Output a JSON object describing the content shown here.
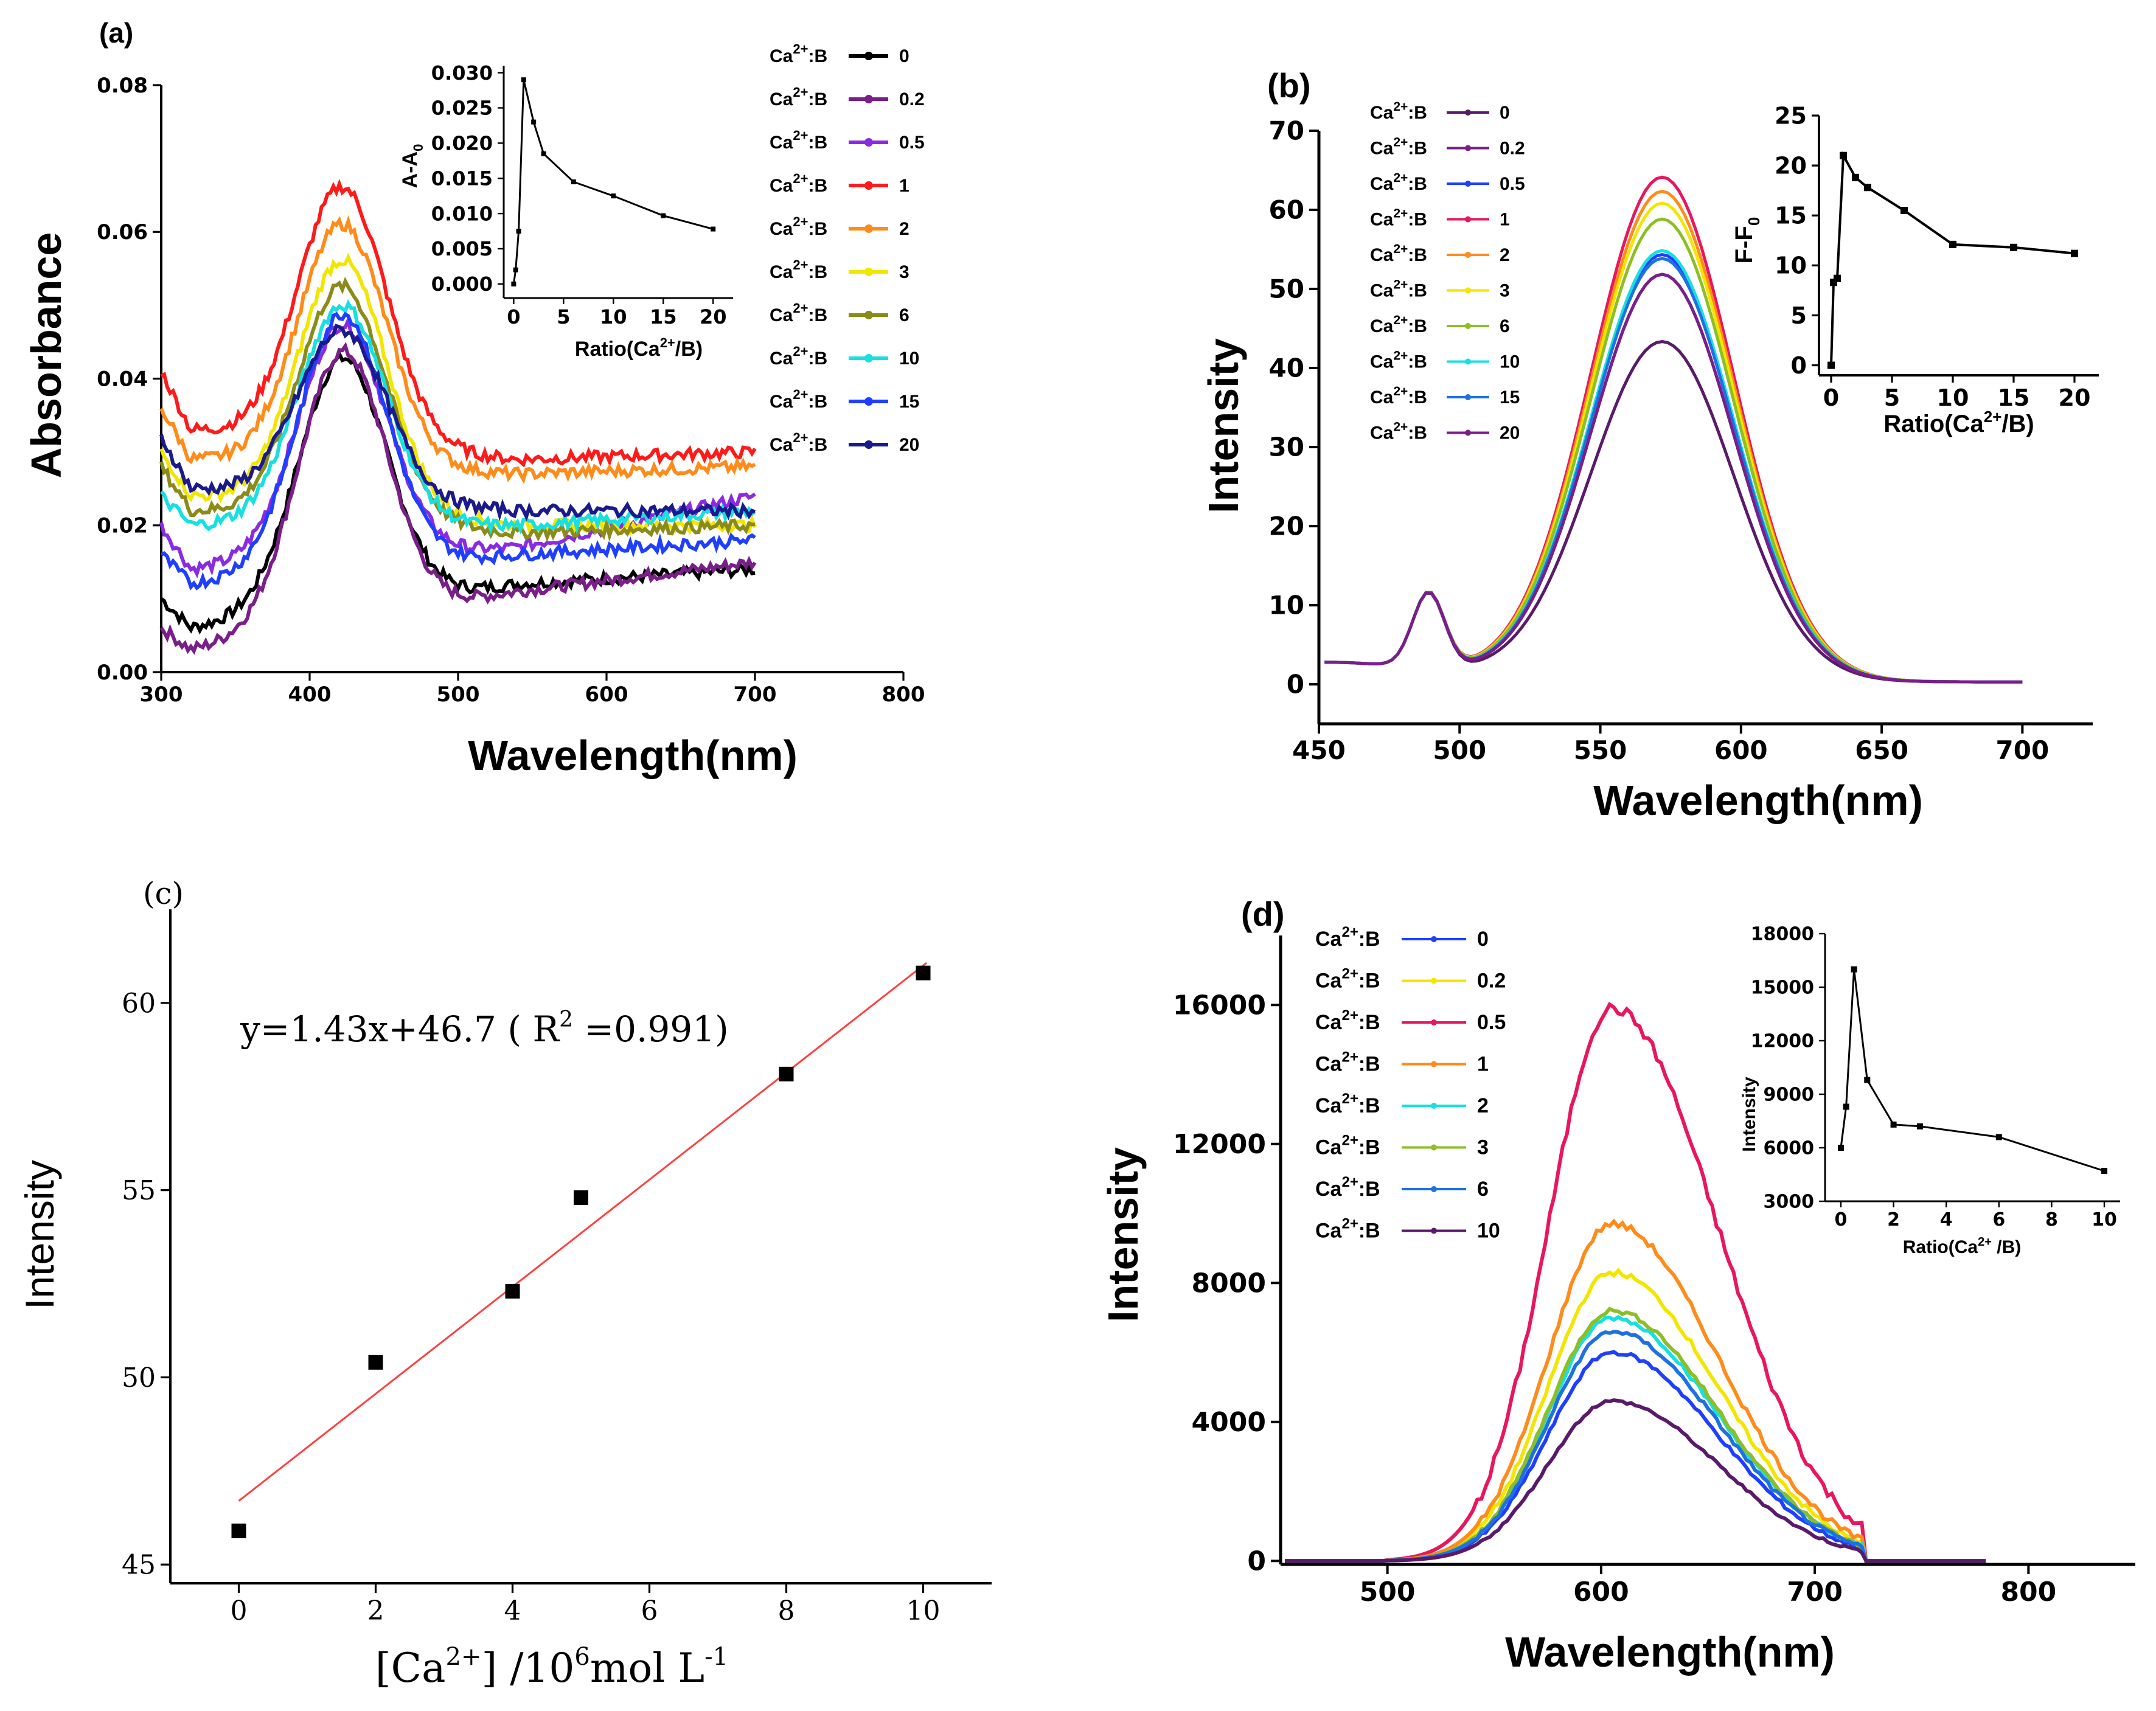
{
  "colors": {
    "black": "#000000",
    "purple": "#7a1e8a",
    "violet": "#8a2be2",
    "red": "#ff1a1a",
    "orange": "#ff8c1a",
    "yellow": "#f2e600",
    "olive": "#8b8b1a",
    "cyan": "#18e0e0",
    "blue": "#1f3fff",
    "navy": "#1a1a8c",
    "pink": "#e8175d",
    "midblue": "#2070e0",
    "green": "#8cbf26",
    "dkpurple": "#5a1a6a",
    "fit": "#ff4040"
  },
  "chart_data": [
    {
      "panel": "a",
      "panel_label": "(a)",
      "type": "line",
      "xlabel": "Wavelength(nm)",
      "ylabel": "Absorbance",
      "xlim": [
        300,
        800
      ],
      "ylim": [
        0,
        0.08
      ],
      "xticks": [
        "300",
        "400",
        "500",
        "600",
        "700",
        "800"
      ],
      "yticks": [
        "0.00",
        "0.02",
        "0.04",
        "0.06",
        "0.08"
      ],
      "legend": {
        "placement": "right",
        "prefix": "Ca",
        "sup": "2+",
        "suffix": ":B"
      },
      "series": [
        {
          "name": "0",
          "color": "black",
          "values": {
            "start": 0.01,
            "valley": 0.006,
            "peak": 0.04,
            "plateau": 0.012,
            "end": 0.014
          }
        },
        {
          "name": "0.2",
          "color": "purple",
          "values": {
            "start": 0.006,
            "valley": 0.003,
            "peak": 0.04,
            "plateau": 0.011,
            "end": 0.015
          }
        },
        {
          "name": "0.5",
          "color": "violet",
          "values": {
            "start": 0.02,
            "valley": 0.014,
            "peak": 0.046,
            "plateau": 0.017,
            "end": 0.024
          }
        },
        {
          "name": "1",
          "color": "red",
          "values": {
            "start": 0.041,
            "valley": 0.033,
            "peak": 0.068,
            "plateau": 0.029,
            "end": 0.03
          }
        },
        {
          "name": "2",
          "color": "orange",
          "values": {
            "start": 0.036,
            "valley": 0.029,
            "peak": 0.062,
            "plateau": 0.027,
            "end": 0.028
          }
        },
        {
          "name": "3",
          "color": "yellow",
          "values": {
            "start": 0.03,
            "valley": 0.024,
            "peak": 0.058,
            "plateau": 0.02,
            "end": 0.02
          }
        },
        {
          "name": "6",
          "color": "olive",
          "values": {
            "start": 0.028,
            "valley": 0.022,
            "peak": 0.054,
            "plateau": 0.019,
            "end": 0.02
          }
        },
        {
          "name": "10",
          "color": "cyan",
          "values": {
            "start": 0.024,
            "valley": 0.02,
            "peak": 0.05,
            "plateau": 0.02,
            "end": 0.022
          }
        },
        {
          "name": "15",
          "color": "blue",
          "values": {
            "start": 0.016,
            "valley": 0.012,
            "peak": 0.047,
            "plateau": 0.016,
            "end": 0.018
          }
        },
        {
          "name": "20",
          "color": "navy",
          "values": {
            "start": 0.032,
            "valley": 0.025,
            "peak": 0.048,
            "plateau": 0.022,
            "end": 0.022
          }
        }
      ],
      "inset": {
        "ylabel": "A-A",
        "ylabel_sub": "0",
        "xlabel": "Ratio(Ca",
        "xlabel_sup": "2+",
        "xlabel_tail": "/B)",
        "xlim": [
          -1,
          22
        ],
        "ylim": [
          -0.002,
          0.031
        ],
        "xticks": [
          "0",
          "5",
          "10",
          "15",
          "20"
        ],
        "yticks": [
          "0.000",
          "0.005",
          "0.010",
          "0.015",
          "0.020",
          "0.025",
          "0.030"
        ],
        "x": [
          0,
          0.2,
          0.5,
          1,
          2,
          3,
          6,
          10,
          15,
          20
        ],
        "y": [
          0.0,
          0.002,
          0.0075,
          0.029,
          0.023,
          0.0185,
          0.0145,
          0.0125,
          0.0097,
          0.0078
        ]
      }
    },
    {
      "panel": "b",
      "panel_label": "(b)",
      "type": "line",
      "xlabel": "Wavelength(nm)",
      "ylabel": "Intensity",
      "xlim": [
        450,
        725
      ],
      "ylim": [
        -5,
        70
      ],
      "xticks": [
        "450",
        "500",
        "550",
        "600",
        "650",
        "700"
      ],
      "yticks": [
        "0",
        "10",
        "20",
        "30",
        "40",
        "50",
        "60",
        "70"
      ],
      "legend": {
        "placement": "top-left",
        "prefix": "Ca",
        "sup": "2+",
        "suffix": ":B"
      },
      "series": [
        {
          "name": "0",
          "color": "dkpurple",
          "peak": 43
        },
        {
          "name": "0.2",
          "color": "purple",
          "peak": 51.5
        },
        {
          "name": "0.5",
          "color": "blue",
          "peak": 54
        },
        {
          "name": "1",
          "color": "pink",
          "peak": 63.8
        },
        {
          "name": "2",
          "color": "orange",
          "peak": 62
        },
        {
          "name": "3",
          "color": "yellow",
          "peak": 60.5
        },
        {
          "name": "6",
          "color": "green",
          "peak": 58.5
        },
        {
          "name": "10",
          "color": "cyan",
          "peak": 54.5
        },
        {
          "name": "15",
          "color": "midblue",
          "peak": 53.5
        },
        {
          "name": "20",
          "color": "purple",
          "peak": 51.5
        }
      ],
      "inset": {
        "ylabel": "F-F",
        "ylabel_sub": "0",
        "xlabel": "Ratio(Ca",
        "xlabel_sup": "2+",
        "xlabel_tail": "/B)",
        "xlim": [
          -1,
          22
        ],
        "ylim": [
          -1,
          25
        ],
        "xticks": [
          "0",
          "5",
          "10",
          "15",
          "20"
        ],
        "yticks": [
          "0",
          "5",
          "10",
          "15",
          "20",
          "25"
        ],
        "x": [
          0,
          0.2,
          0.5,
          1,
          2,
          3,
          6,
          10,
          15,
          20
        ],
        "y": [
          0,
          8.3,
          8.7,
          21,
          18.8,
          17.8,
          15.5,
          12.1,
          11.8,
          11.2
        ]
      }
    },
    {
      "panel": "c",
      "panel_label": "(c)",
      "type": "scatter",
      "ylabel": "Intensity",
      "xlabel_pre": "[Ca",
      "xlabel_sup1": "2+",
      "xlabel_mid": "] /10",
      "xlabel_sup2": "6",
      "xlabel_post": "mol L",
      "xlabel_sup3": "-1",
      "xlim": [
        -1,
        11
      ],
      "ylim": [
        44.5,
        62.5
      ],
      "xticks": [
        "0",
        "2",
        "4",
        "6",
        "8",
        "10"
      ],
      "yticks": [
        "45",
        "50",
        "55",
        "60"
      ],
      "equation_pre": "y=1.43x+46.7  ( R",
      "equation_sup": "2",
      "equation_post": " =0.991)",
      "fit": {
        "slope": 1.43,
        "intercept": 46.7,
        "x_range": [
          0,
          10
        ]
      },
      "x": [
        0,
        2,
        4,
        5,
        8,
        10
      ],
      "y": [
        45.9,
        50.4,
        52.3,
        54.8,
        58.1,
        60.8
      ]
    },
    {
      "panel": "d",
      "panel_label": "(d)",
      "type": "line",
      "xlabel": "Wavelength(nm)",
      "ylabel": "Intensity",
      "xlim": [
        450,
        850
      ],
      "ylim": [
        -100,
        18000
      ],
      "xticks": [
        "500",
        "600",
        "700",
        "800"
      ],
      "yticks": [
        "0",
        "4000",
        "8000",
        "12000",
        "16000"
      ],
      "legend": {
        "placement": "top-left",
        "prefix": "Ca",
        "sup": "2+",
        "suffix": ":B"
      },
      "series": [
        {
          "name": "0",
          "color": "blue",
          "peak": 6000
        },
        {
          "name": "0.2",
          "color": "yellow",
          "peak": 8300
        },
        {
          "name": "0.5",
          "color": "pink",
          "peak": 15900
        },
        {
          "name": "1",
          "color": "orange",
          "peak": 9700
        },
        {
          "name": "2",
          "color": "cyan",
          "peak": 7000
        },
        {
          "name": "3",
          "color": "green",
          "peak": 7200
        },
        {
          "name": "6",
          "color": "midblue",
          "peak": 6600
        },
        {
          "name": "10",
          "color": "dkpurple",
          "peak": 4600
        }
      ],
      "inset": {
        "ylabel": "Intensity",
        "xlabel": "Ratio(Ca",
        "xlabel_sup": "2+",
        "xlabel_tail": " /B)",
        "xlim": [
          -0.6,
          10.6
        ],
        "ylim": [
          3000,
          18000
        ],
        "xticks": [
          "0",
          "2",
          "4",
          "6",
          "8",
          "10"
        ],
        "yticks": [
          "3000",
          "6000",
          "9000",
          "12000",
          "15000",
          "18000"
        ],
        "x": [
          0,
          0.2,
          0.5,
          1,
          2,
          3,
          6,
          10
        ],
        "y": [
          6000,
          8300,
          16000,
          9800,
          7300,
          7200,
          6600,
          4700
        ]
      }
    }
  ]
}
